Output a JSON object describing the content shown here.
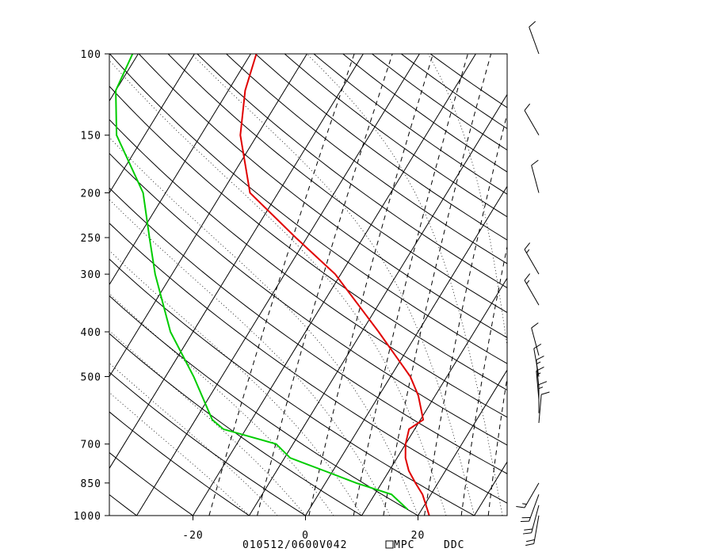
{
  "chart_data": {
    "type": "skew-t",
    "pressure_levels": [
      100,
      150,
      200,
      250,
      300,
      400,
      500,
      700,
      850,
      1000
    ],
    "pressure_labels": [
      "100",
      "150",
      "200",
      "250",
      "300",
      "400",
      "500",
      "700",
      "850",
      "1000"
    ],
    "temperature_ticks": [
      -20,
      0,
      20
    ],
    "temperature_tick_labels": [
      "-20",
      "0",
      "20"
    ],
    "pressure_range": [
      1000,
      100
    ],
    "temperature_range_at_1000": [
      -34.5,
      35
    ],
    "log_pressure_axis": true,
    "grid": true,
    "footer": {
      "date_model": "010512/0600V042",
      "source": "MPC",
      "station": "DDC"
    },
    "series": [
      {
        "color": "#e00000",
        "points": [
          {
            "p": 1000,
            "t": 22
          },
          {
            "p": 970,
            "t": 21
          },
          {
            "p": 900,
            "t": 18.5
          },
          {
            "p": 850,
            "t": 16
          },
          {
            "p": 800,
            "t": 13.5
          },
          {
            "p": 750,
            "t": 11.5
          },
          {
            "p": 700,
            "t": 10
          },
          {
            "p": 650,
            "t": 9
          },
          {
            "p": 620,
            "t": 10.5
          },
          {
            "p": 550,
            "t": 7
          },
          {
            "p": 500,
            "t": 3.5
          },
          {
            "p": 400,
            "t": -7
          },
          {
            "p": 350,
            "t": -13.5
          },
          {
            "p": 300,
            "t": -21
          },
          {
            "p": 250,
            "t": -32
          },
          {
            "p": 200,
            "t": -45
          },
          {
            "p": 150,
            "t": -53
          },
          {
            "p": 120,
            "t": -57
          },
          {
            "p": 100,
            "t": -59
          }
        ]
      },
      {
        "color": "#00cc00",
        "points": [
          {
            "p": 970,
            "t": 17.5
          },
          {
            "p": 900,
            "t": 13
          },
          {
            "p": 850,
            "t": 5.5
          },
          {
            "p": 800,
            "t": -1.5
          },
          {
            "p": 750,
            "t": -9
          },
          {
            "p": 700,
            "t": -13
          },
          {
            "p": 650,
            "t": -24
          },
          {
            "p": 620,
            "t": -27
          },
          {
            "p": 500,
            "t": -35
          },
          {
            "p": 400,
            "t": -44
          },
          {
            "p": 300,
            "t": -53
          },
          {
            "p": 250,
            "t": -58
          },
          {
            "p": 200,
            "t": -64
          },
          {
            "p": 150,
            "t": -75
          },
          {
            "p": 120,
            "t": -80
          },
          {
            "p": 100,
            "t": -81
          }
        ]
      }
    ],
    "wind_barbs": [
      {
        "p": 100,
        "dir": 340,
        "spd": 10
      },
      {
        "p": 150,
        "dir": 330,
        "spd": 10
      },
      {
        "p": 200,
        "dir": 345,
        "spd": 10
      },
      {
        "p": 300,
        "dir": 330,
        "spd": 15
      },
      {
        "p": 350,
        "dir": 330,
        "spd": 15
      },
      {
        "p": 450,
        "dir": 345,
        "spd": 10
      },
      {
        "p": 500,
        "dir": 350,
        "spd": 10
      },
      {
        "p": 530,
        "dir": 355,
        "spd": 15
      },
      {
        "p": 560,
        "dir": 355,
        "spd": 15
      },
      {
        "p": 600,
        "dir": 0,
        "spd": 15
      },
      {
        "p": 630,
        "dir": 5,
        "spd": 10
      },
      {
        "p": 850,
        "dir": 210,
        "spd": 15
      },
      {
        "p": 900,
        "dir": 200,
        "spd": 20
      },
      {
        "p": 950,
        "dir": 195,
        "spd": 20
      },
      {
        "p": 1000,
        "dir": 190,
        "spd": 20
      }
    ]
  }
}
